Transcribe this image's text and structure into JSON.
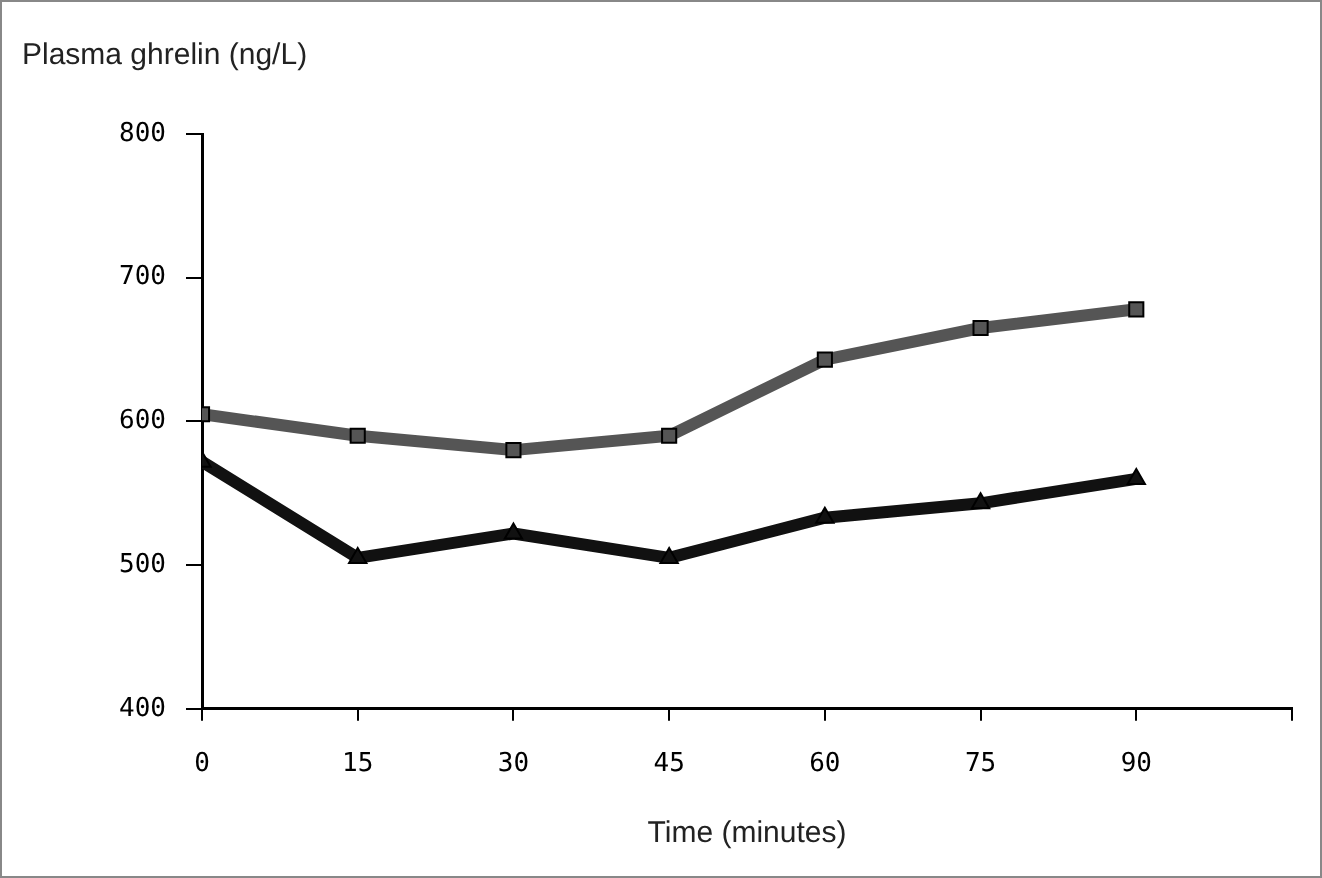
{
  "chart_data": {
    "type": "line",
    "ylabel": "Plasma ghrelin (ng/L)",
    "xlabel": "Time (minutes)",
    "x": [
      0,
      15,
      30,
      45,
      60,
      75,
      90
    ],
    "series": [
      {
        "color": "#555555",
        "marker": "square",
        "values": [
          605,
          590,
          580,
          590,
          643,
          665,
          678
        ]
      },
      {
        "color": "#111111",
        "marker": "triangle",
        "values": [
          572,
          505,
          522,
          505,
          533,
          543,
          560
        ]
      }
    ],
    "xlim": [
      0,
      105
    ],
    "xticks": [
      0,
      15,
      30,
      45,
      60,
      75,
      90,
      {
        "value": 105,
        "label": null
      }
    ],
    "ylim": [
      400,
      800
    ],
    "yticks": [
      400,
      500,
      600,
      700,
      800
    ],
    "grid": false,
    "legend": false,
    "line_style": "solid"
  }
}
